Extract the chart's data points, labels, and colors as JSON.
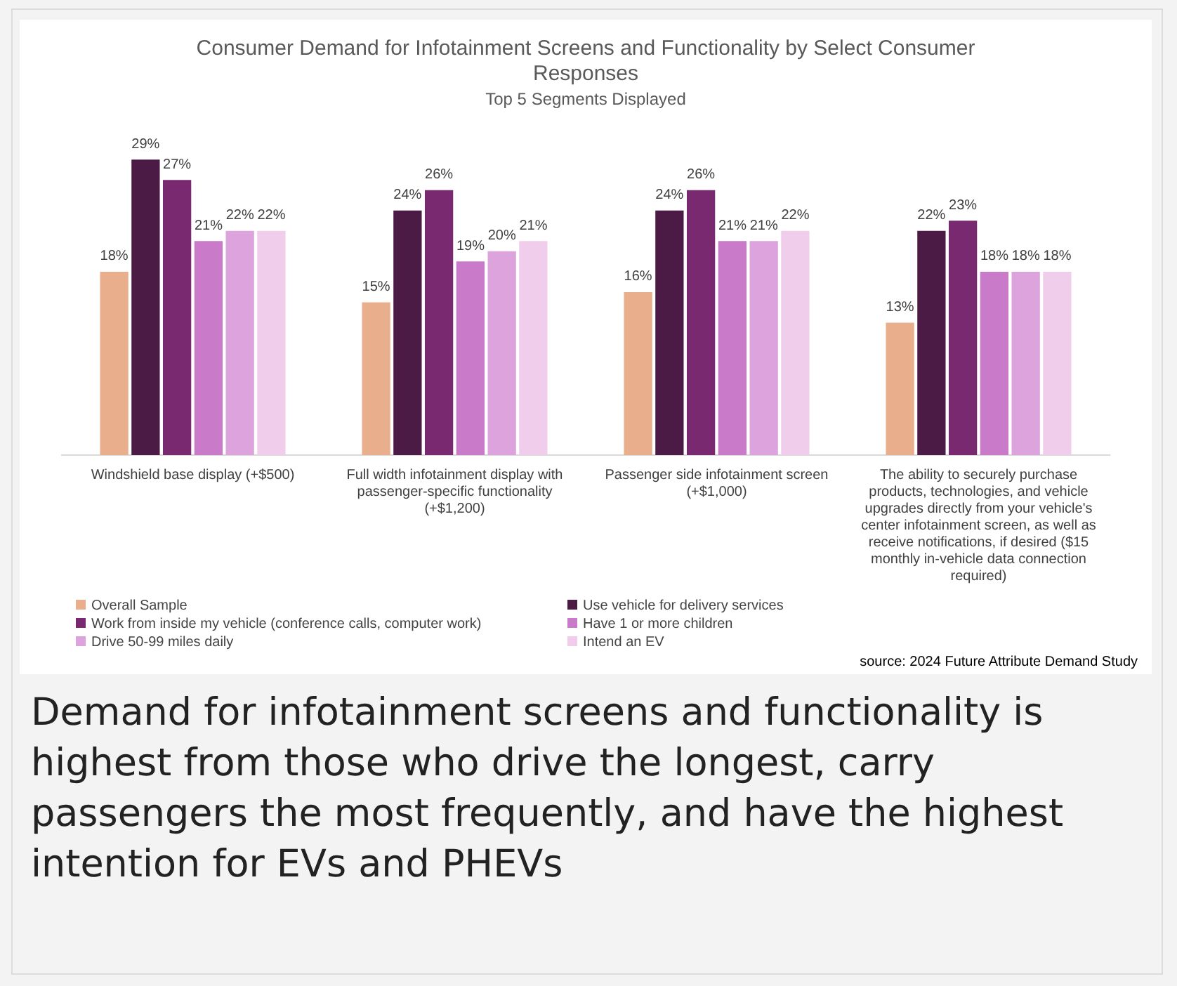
{
  "chart_data": {
    "type": "bar",
    "title": "Consumer Demand for Infotainment Screens and Functionality by Select Consumer Responses",
    "subtitle": "Top 5 Segments Displayed",
    "categories": [
      "Windshield base display (+$500)",
      "Full width infotainment display with passenger-specific functionality (+$1,200)",
      "Passenger side infotainment screen (+$1,000)",
      "The ability to securely purchase products, technologies, and vehicle upgrades directly from your vehicle's center infotainment screen, as well as receive notifications, if desired ($15 monthly in-vehicle data connection required)"
    ],
    "series": [
      {
        "name": "Overall Sample",
        "color": "#e9ae8c",
        "values": [
          18,
          15,
          16,
          13
        ],
        "value_labels": [
          "18%",
          "15%",
          "16%",
          "13%"
        ]
      },
      {
        "name": "Use vehicle for delivery services",
        "color": "#4b1a45",
        "values": [
          29,
          24,
          24,
          22
        ],
        "value_labels": [
          "29%",
          "24%",
          "24%",
          "22%"
        ]
      },
      {
        "name": "Work from inside my vehicle (conference calls, computer work)",
        "color": "#79296f",
        "values": [
          27,
          26,
          26,
          23
        ],
        "value_labels": [
          "27%",
          "26%",
          "26%",
          "23%"
        ]
      },
      {
        "name": "Have 1 or more children",
        "color": "#c97ac9",
        "values": [
          21,
          19,
          21,
          18
        ],
        "value_labels": [
          "21%",
          "19%",
          "21%",
          "18%"
        ]
      },
      {
        "name": "Drive 50-99 miles daily",
        "color": "#dda3dc",
        "values": [
          22,
          20,
          21,
          18
        ],
        "value_labels": [
          "22%",
          "20%",
          "21%",
          "18%"
        ]
      },
      {
        "name": "Intend an EV",
        "color": "#f1cdec",
        "values": [
          22,
          21,
          22,
          18
        ],
        "value_labels": [
          "22%",
          "21%",
          "22%",
          "18%"
        ]
      }
    ],
    "grid": false,
    "legend": "bottom",
    "tick_labels": "x",
    "annotations": [
      "source: 2024 Future Attribute Demand Study",
      "Demand for infotainment screens and functionality is highest from those who drive the longest, carry passengers the most frequently, and have the highest intention for EVs and PHEVs"
    ]
  }
}
